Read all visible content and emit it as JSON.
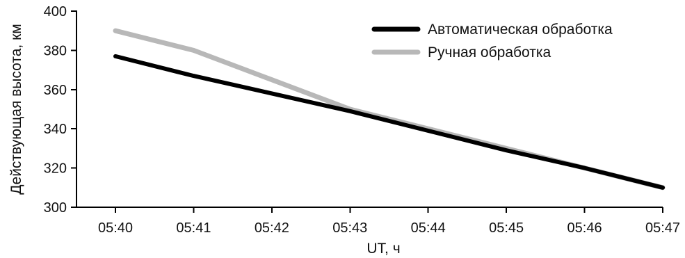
{
  "chart_data": {
    "type": "line",
    "title": "",
    "xlabel": "UT, ч",
    "ylabel": "Действующая высота, км",
    "categories": [
      "05:40",
      "05:41",
      "05:42",
      "05:43",
      "05:44",
      "05:45",
      "05:46",
      "05:47"
    ],
    "ylim": [
      300,
      400
    ],
    "yticks": [
      300,
      320,
      340,
      360,
      380,
      400
    ],
    "grid": false,
    "legend_position": "top-right",
    "series": [
      {
        "name": "Автоматическая обработка",
        "color": "#000000",
        "values": [
          377,
          367,
          358,
          349,
          339,
          329,
          320,
          310
        ]
      },
      {
        "name": "Ручная обработка",
        "color": "#b8b8b8",
        "values": [
          390,
          380,
          365,
          350,
          340,
          330,
          320,
          310
        ]
      }
    ]
  }
}
